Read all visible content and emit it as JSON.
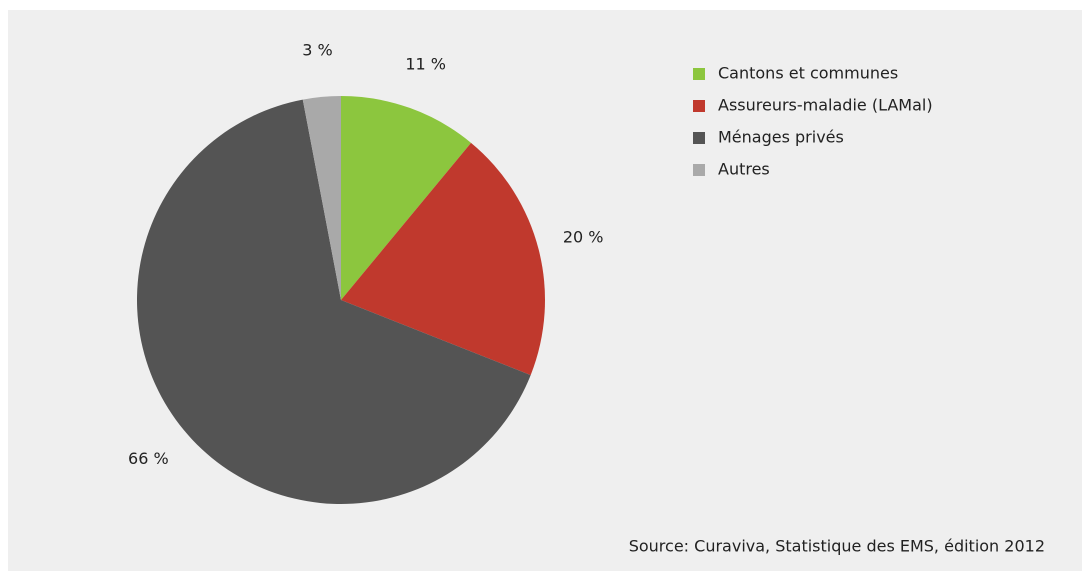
{
  "chart_data": {
    "type": "pie",
    "categories": [
      "Cantons et communes",
      "Assureurs-maladie (LAMal)",
      "Ménages privés",
      "Autres"
    ],
    "values": [
      11,
      20,
      66,
      3
    ],
    "value_labels": [
      "11 %",
      "20 %",
      "66 %",
      "3 %"
    ],
    "colors": [
      "#8cc63e",
      "#c0392d",
      "#545454",
      "#a9a9a9"
    ],
    "legend": "top-right",
    "source": "Source: Curaviva, Statistique des EMS, édition 2012"
  }
}
